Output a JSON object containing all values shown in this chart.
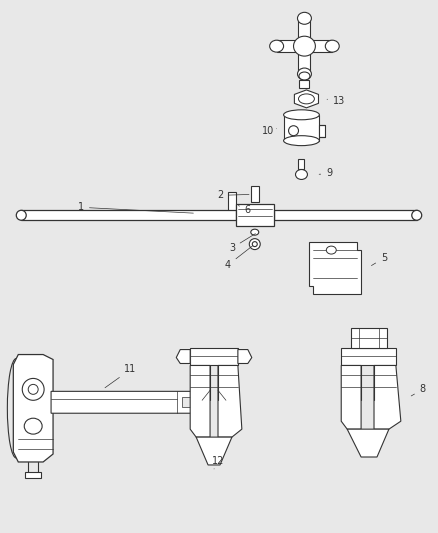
{
  "background_color": "#e8e8e8",
  "line_color": "#333333",
  "figure_width": 4.38,
  "figure_height": 5.33,
  "dpi": 100
}
